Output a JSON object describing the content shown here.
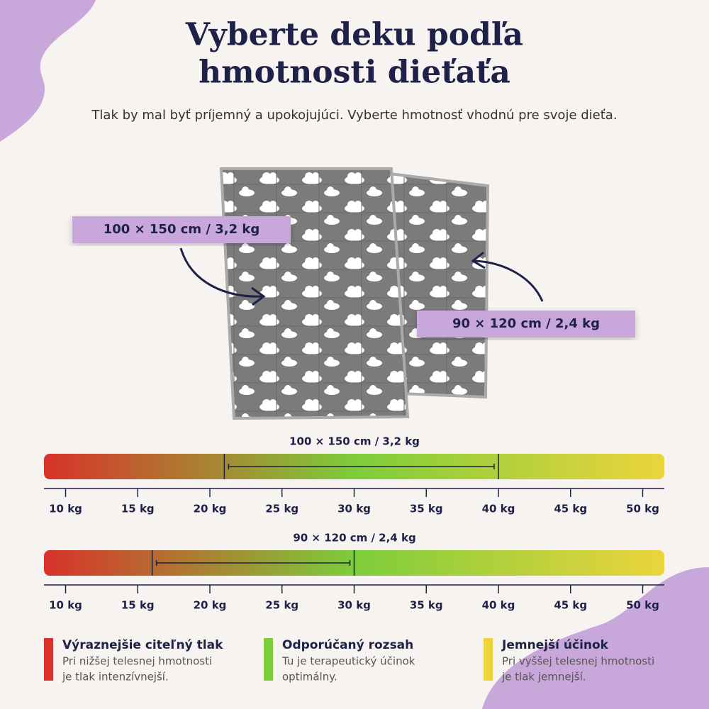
{
  "title_lines": [
    "Vyberte deku podľa",
    "hmotnosti dieťaťa"
  ],
  "subtitle": "Tlak by mal byť príjemný a upokojujúci. Vyberte hmotnosť vhodnú pre svoje dieťa.",
  "callouts": [
    "100 × 150 cm / 3,2 kg",
    "90 × 120 cm / 2,4 kg"
  ],
  "axis": {
    "xlim": [
      8.5,
      51.5
    ],
    "xticks": [
      {
        "value": 10,
        "label": "10 kg"
      },
      {
        "value": 15,
        "label": "15 kg"
      },
      {
        "value": 20,
        "label": "20 kg"
      },
      {
        "value": 25,
        "label": "25 kg"
      },
      {
        "value": 30,
        "label": "30 kg"
      },
      {
        "value": 35,
        "label": "35 kg"
      },
      {
        "value": 40,
        "label": "40 kg"
      },
      {
        "value": 45,
        "label": "45 kg"
      },
      {
        "value": 50,
        "label": "50 kg"
      }
    ],
    "gradient": [
      "#d8322a",
      "#7dcd3b",
      "#ecd43c"
    ]
  },
  "scales": [
    {
      "label": "100 × 150 cm / 3,2 kg",
      "range": [
        21,
        40
      ]
    },
    {
      "label": "90 × 120 cm / 2,4 kg",
      "range": [
        16,
        30
      ]
    }
  ],
  "legend": [
    {
      "title": "Výraznejšie citeľný tlak",
      "text_lines": [
        "Pri nižšej telesnej hmotnosti",
        "je tlak intenzívnejší."
      ],
      "color": "#d8322a"
    },
    {
      "title": "Odporúčaný rozsah",
      "text_lines": [
        "Tu je terapeutický účinok",
        "optimálny."
      ],
      "color": "#7dcd3b"
    },
    {
      "title": "Jemnejší účinok",
      "text_lines": [
        "Pri vyššej telesnej hmotnosti",
        "je tlak jemnejší."
      ],
      "color": "#ecd43c"
    }
  ]
}
